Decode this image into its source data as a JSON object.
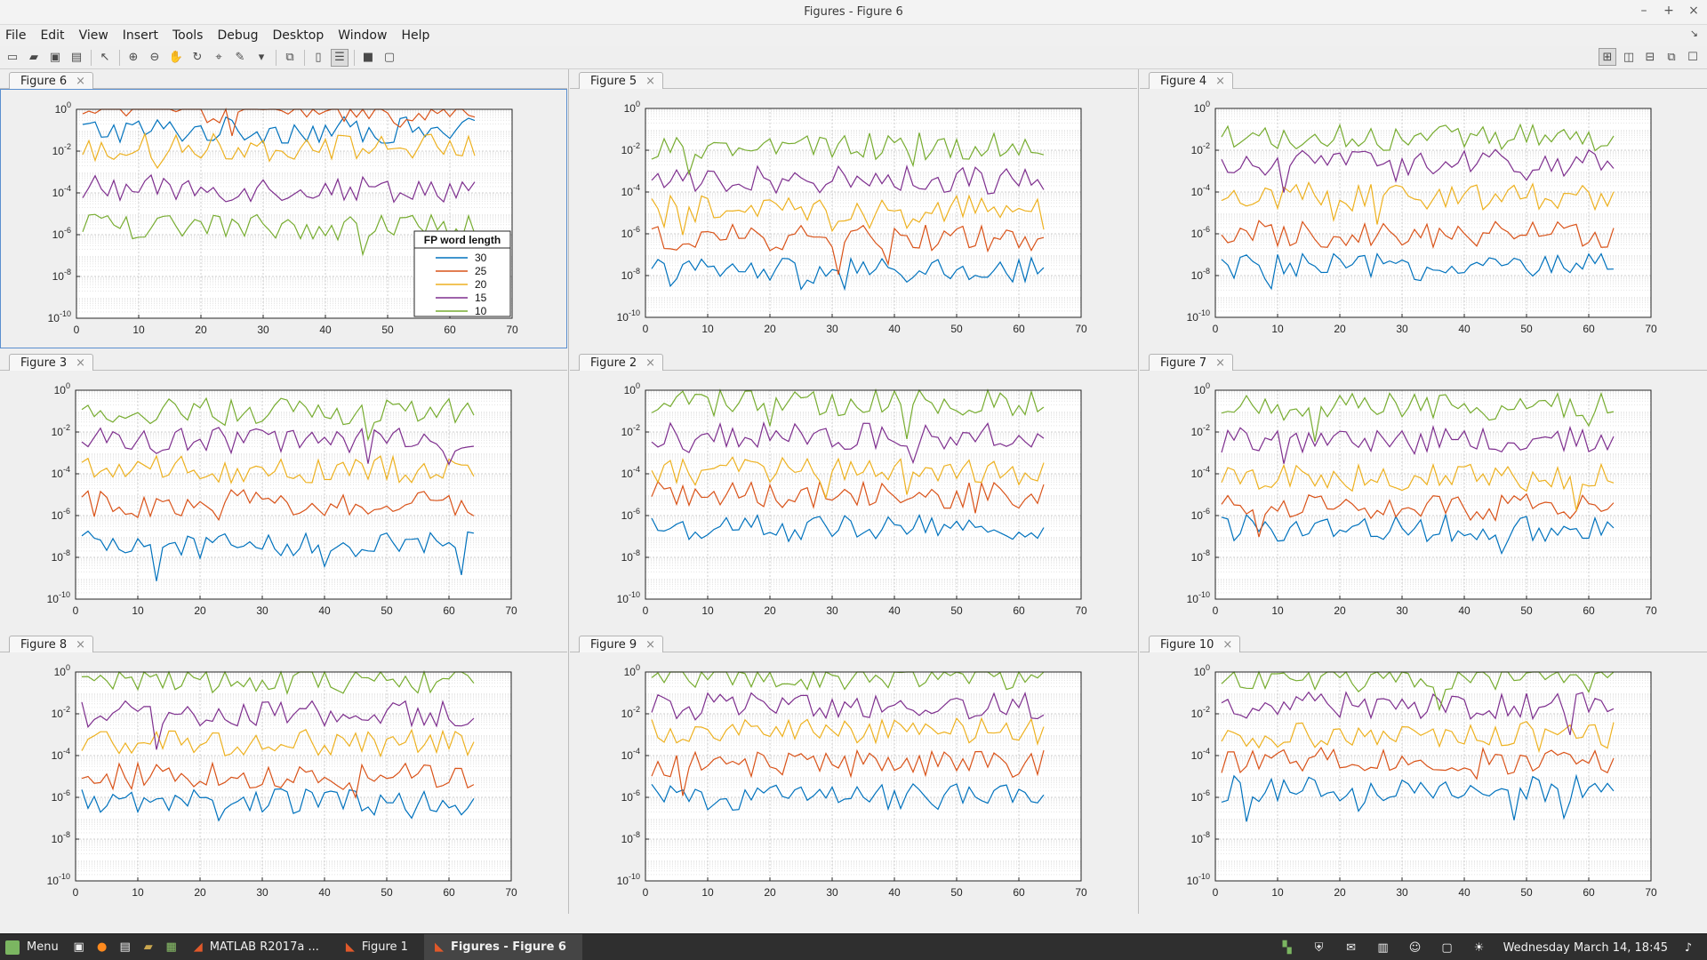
{
  "window": {
    "title": "Figures - Figure 6",
    "controls": [
      "–",
      "+",
      "×"
    ]
  },
  "menu": [
    "File",
    "Edit",
    "View",
    "Insert",
    "Tools",
    "Debug",
    "Desktop",
    "Window",
    "Help"
  ],
  "menu_corner": "↘",
  "toolbar": {
    "icons": [
      "new-figure-icon",
      "open-icon",
      "save-icon",
      "print-icon",
      "pointer-icon",
      "zoom-in-icon",
      "zoom-out-icon",
      "pan-icon",
      "rotate-icon",
      "data-cursor-icon",
      "brush-icon",
      "dropdown-icon",
      "link-plot-icon",
      "colorbar-icon",
      "legend-icon",
      "hide-plot-tools-icon",
      "show-plot-tools-icon"
    ],
    "layout_icons": [
      "tile-grid-icon",
      "tile-columns-icon",
      "tile-rows-icon",
      "float-icon",
      "maximize-icon"
    ]
  },
  "axes": {
    "xticks": [
      "0",
      "10",
      "20",
      "30",
      "40",
      "50",
      "60",
      "70"
    ],
    "yticks": [
      {
        "base": "10",
        "exp": "0"
      },
      {
        "base": "10",
        "exp": "-2"
      },
      {
        "base": "10",
        "exp": "-4"
      },
      {
        "base": "10",
        "exp": "-6"
      },
      {
        "base": "10",
        "exp": "-8"
      },
      {
        "base": "10",
        "exp": "-10"
      }
    ]
  },
  "series_colors": [
    "#0072bd",
    "#d95319",
    "#edb120",
    "#7e2f8e",
    "#77ac30"
  ],
  "legend": {
    "title": "FP word length",
    "entries": [
      "30",
      "25",
      "20",
      "15",
      "10"
    ]
  },
  "chart_data": [
    {
      "figure": "Figure 6",
      "type": "line",
      "xlim": [
        0,
        70
      ],
      "ylim_exponent": [
        -10,
        0
      ],
      "yscale": "log",
      "grid": "on",
      "legend_placement": "bottom-right",
      "n_points": 64,
      "series_log10_centers": [
        -1.0,
        0.0,
        -1.8,
        -3.8,
        -5.6
      ],
      "x": [
        1,
        64
      ]
    },
    {
      "figure": "Figure 5",
      "type": "line",
      "xlim": [
        0,
        70
      ],
      "ylim_exponent": [
        -10,
        0
      ],
      "yscale": "log",
      "grid": "on",
      "n_points": 64,
      "series_log10_centers": [
        -7.8,
        -6.2,
        -4.8,
        -3.4,
        -1.8
      ],
      "x": [
        1,
        64
      ]
    },
    {
      "figure": "Figure 4",
      "type": "line",
      "xlim": [
        0,
        70
      ],
      "ylim_exponent": [
        -10,
        0
      ],
      "yscale": "log",
      "grid": "on",
      "n_points": 64,
      "series_log10_centers": [
        -7.6,
        -6.0,
        -4.2,
        -2.6,
        -1.4
      ],
      "x": [
        1,
        64
      ]
    },
    {
      "figure": "Figure 3",
      "type": "line",
      "xlim": [
        0,
        70
      ],
      "ylim_exponent": [
        -10,
        0
      ],
      "yscale": "log",
      "grid": "on",
      "n_points": 64,
      "series_log10_centers": [
        -7.4,
        -5.4,
        -3.8,
        -2.4,
        -1.0
      ],
      "x": [
        1,
        64
      ]
    },
    {
      "figure": "Figure 2",
      "type": "line",
      "xlim": [
        0,
        70
      ],
      "ylim_exponent": [
        -10,
        0
      ],
      "yscale": "log",
      "grid": "on",
      "n_points": 64,
      "series_log10_centers": [
        -6.6,
        -5.0,
        -3.8,
        -2.2,
        -0.6
      ],
      "x": [
        1,
        64
      ]
    },
    {
      "figure": "Figure 7",
      "type": "line",
      "xlim": [
        0,
        70
      ],
      "ylim_exponent": [
        -10,
        0
      ],
      "yscale": "log",
      "grid": "on",
      "n_points": 64,
      "series_log10_centers": [
        -6.6,
        -5.6,
        -4.2,
        -2.4,
        -0.8
      ],
      "x": [
        1,
        64
      ]
    },
    {
      "figure": "Figure 8",
      "type": "line",
      "xlim": [
        0,
        70
      ],
      "ylim_exponent": [
        -10,
        0
      ],
      "yscale": "log",
      "grid": "on",
      "n_points": 64,
      "series_log10_centers": [
        -6.2,
        -5.0,
        -3.4,
        -2.0,
        -0.4
      ],
      "x": [
        1,
        64
      ]
    },
    {
      "figure": "Figure 9",
      "type": "line",
      "xlim": [
        0,
        70
      ],
      "ylim_exponent": [
        -10,
        0
      ],
      "yscale": "log",
      "grid": "on",
      "n_points": 64,
      "series_log10_centers": [
        -6.0,
        -4.4,
        -2.8,
        -1.6,
        -0.2
      ],
      "x": [
        1,
        64
      ]
    },
    {
      "figure": "Figure 10",
      "type": "line",
      "xlim": [
        0,
        70
      ],
      "ylim_exponent": [
        -10,
        0
      ],
      "yscale": "log",
      "grid": "on",
      "n_points": 64,
      "series_log10_centers": [
        -5.6,
        -4.2,
        -3.0,
        -1.6,
        -0.3
      ],
      "x": [
        1,
        64
      ]
    }
  ],
  "taskbar": {
    "menu_label": "Menu",
    "apps": [
      {
        "label": "MATLAB R2017a ...",
        "icon": "matlab-icon",
        "active": false
      },
      {
        "label": "Figure 1",
        "icon": "figure-icon",
        "active": false
      },
      {
        "label": "Figures - Figure 6",
        "icon": "figure-icon",
        "active": true
      }
    ],
    "quick_icons": [
      "desktop-icon",
      "firefox-icon",
      "terminal-icon",
      "files-icon",
      "monitor-icon"
    ],
    "tray_icons": [
      "network-icon",
      "shield-icon",
      "chat-icon",
      "clipboard-icon",
      "user-icon",
      "display-icon",
      "brightness-icon"
    ],
    "clock": "Wednesday March 14, 18:45",
    "volume_icon": "volume-icon"
  }
}
